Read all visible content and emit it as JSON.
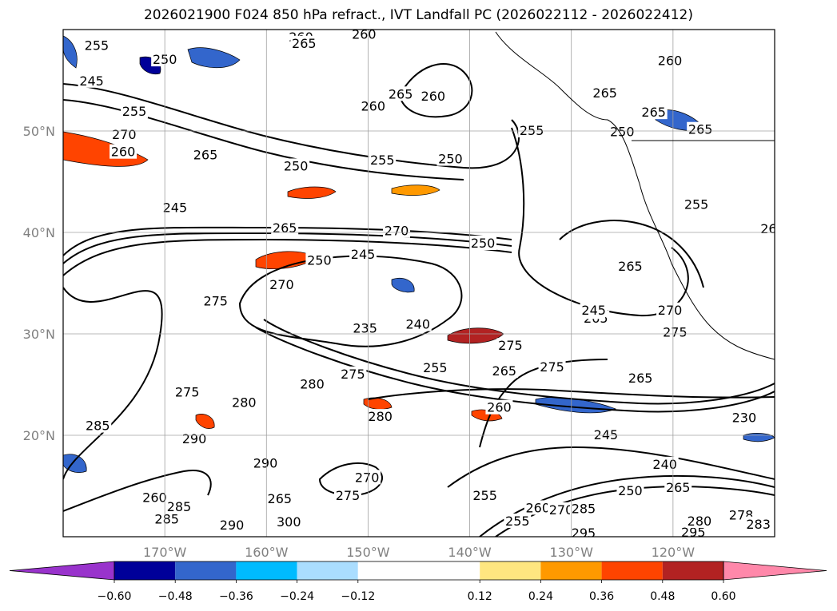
{
  "title": "2026021900 F024 850 hPa refract., IVT Landfall PC (2026022112 - 2026022412)",
  "chart_data": {
    "type": "contour_map",
    "title": "2026021900 F024 850 hPa refract., IVT Landfall PC (2026022112 - 2026022412)",
    "lon_range": [
      -180,
      -110
    ],
    "lat_range": [
      10,
      60
    ],
    "lon_ticks": [
      {
        "value": -170,
        "label": "170°W"
      },
      {
        "value": -160,
        "label": "160°W"
      },
      {
        "value": -150,
        "label": "150°W"
      },
      {
        "value": -140,
        "label": "140°W"
      },
      {
        "value": -130,
        "label": "130°W"
      },
      {
        "value": -120,
        "label": "120°W"
      }
    ],
    "lat_ticks": [
      {
        "value": 50,
        "label": "50°N"
      },
      {
        "value": 40,
        "label": "40°N"
      },
      {
        "value": 30,
        "label": "30°N"
      },
      {
        "value": 20,
        "label": "20°N"
      }
    ],
    "grid": true,
    "tick_color": "#808080",
    "colorbar": {
      "orientation": "horizontal",
      "extend": "both",
      "levels": [
        -0.72,
        -0.6,
        -0.48,
        -0.36,
        -0.24,
        -0.12,
        0.12,
        0.24,
        0.36,
        0.48,
        0.6,
        0.72
      ],
      "tick_labels": [
        "−0.60",
        "−0.48",
        "−0.36",
        "−0.24",
        "−0.12",
        "0.12",
        "0.24",
        "0.36",
        "0.48",
        "0.60"
      ],
      "colors": [
        "#9933cc",
        "#000099",
        "#3366cc",
        "#00bbff",
        "#aaddff",
        "#ffffff",
        "#ffe680",
        "#ff9900",
        "#ff4400",
        "#b22222",
        "#ff88aa"
      ]
    },
    "contour_labels": [
      {
        "text": "255",
        "lon": -176.7,
        "lat": 58.4
      },
      {
        "text": "250",
        "lon": -170.0,
        "lat": 57.0
      },
      {
        "text": "245",
        "lon": -177.2,
        "lat": 54.9
      },
      {
        "text": "255",
        "lon": -173.0,
        "lat": 51.9
      },
      {
        "text": "270",
        "lon": -174.0,
        "lat": 49.6
      },
      {
        "text": "260",
        "lon": -174.1,
        "lat": 47.9
      },
      {
        "text": "265",
        "lon": -166.0,
        "lat": 47.6
      },
      {
        "text": "245",
        "lon": -169.0,
        "lat": 42.4
      },
      {
        "text": "265",
        "lon": -158.2,
        "lat": 40.4
      },
      {
        "text": "250",
        "lon": -157.1,
        "lat": 46.5
      },
      {
        "text": "255",
        "lon": -148.6,
        "lat": 47.1
      },
      {
        "text": "250",
        "lon": -141.9,
        "lat": 47.2
      },
      {
        "text": "260",
        "lon": -156.6,
        "lat": 59.2
      },
      {
        "text": "265",
        "lon": -156.3,
        "lat": 58.6
      },
      {
        "text": "260",
        "lon": -150.4,
        "lat": 59.5
      },
      {
        "text": "265",
        "lon": -146.8,
        "lat": 53.6
      },
      {
        "text": "260",
        "lon": -143.6,
        "lat": 53.4
      },
      {
        "text": "260",
        "lon": -149.5,
        "lat": 52.4
      },
      {
        "text": "270",
        "lon": -147.2,
        "lat": 40.1
      },
      {
        "text": "250",
        "lon": -154.8,
        "lat": 37.2
      },
      {
        "text": "245",
        "lon": -150.5,
        "lat": 37.8
      },
      {
        "text": "275",
        "lon": -165.0,
        "lat": 33.2
      },
      {
        "text": "270",
        "lon": -158.5,
        "lat": 34.8
      },
      {
        "text": "235",
        "lon": -150.3,
        "lat": 30.5
      },
      {
        "text": "240",
        "lon": -145.1,
        "lat": 30.9
      },
      {
        "text": "275",
        "lon": -136.0,
        "lat": 28.8
      },
      {
        "text": "275",
        "lon": -131.9,
        "lat": 26.7
      },
      {
        "text": "265",
        "lon": -136.6,
        "lat": 26.3
      },
      {
        "text": "255",
        "lon": -143.4,
        "lat": 26.6
      },
      {
        "text": "280",
        "lon": -155.5,
        "lat": 25.0
      },
      {
        "text": "275",
        "lon": -151.5,
        "lat": 26.0
      },
      {
        "text": "280",
        "lon": -148.8,
        "lat": 21.8
      },
      {
        "text": "260",
        "lon": -137.1,
        "lat": 22.7
      },
      {
        "text": "265",
        "lon": -127.6,
        "lat": 31.5
      },
      {
        "text": "265",
        "lon": -123.2,
        "lat": 25.6
      },
      {
        "text": "240",
        "lon": -128.0,
        "lat": 32.1
      },
      {
        "text": "245",
        "lon": -127.8,
        "lat": 32.3
      },
      {
        "text": "250",
        "lon": -138.7,
        "lat": 38.9
      },
      {
        "text": "255",
        "lon": -133.9,
        "lat": 50.0
      },
      {
        "text": "260",
        "lon": -120.3,
        "lat": 56.9
      },
      {
        "text": "265",
        "lon": -121.9,
        "lat": 51.8
      },
      {
        "text": "265",
        "lon": -117.3,
        "lat": 50.1
      },
      {
        "text": "250",
        "lon": -125.0,
        "lat": 49.9
      },
      {
        "text": "265",
        "lon": -126.7,
        "lat": 53.7
      },
      {
        "text": "255",
        "lon": -117.7,
        "lat": 42.7
      },
      {
        "text": "265",
        "lon": -124.2,
        "lat": 36.6
      },
      {
        "text": "270",
        "lon": -120.3,
        "lat": 32.3
      },
      {
        "text": "275",
        "lon": -119.8,
        "lat": 30.1
      },
      {
        "text": "240",
        "lon": -120.8,
        "lat": 17.1
      },
      {
        "text": "250",
        "lon": -124.2,
        "lat": 14.5
      },
      {
        "text": "245",
        "lon": -126.6,
        "lat": 20.0
      },
      {
        "text": "230",
        "lon": -113.0,
        "lat": 21.7
      },
      {
        "text": "285",
        "lon": -176.6,
        "lat": 20.9
      },
      {
        "text": "275",
        "lon": -167.8,
        "lat": 24.2
      },
      {
        "text": "280",
        "lon": -162.2,
        "lat": 23.2
      },
      {
        "text": "290",
        "lon": -167.1,
        "lat": 19.6
      },
      {
        "text": "290",
        "lon": -160.1,
        "lat": 17.2
      },
      {
        "text": "265",
        "lon": -158.7,
        "lat": 13.7
      },
      {
        "text": "300",
        "lon": -157.8,
        "lat": 11.4
      },
      {
        "text": "290",
        "lon": -163.4,
        "lat": 11.1
      },
      {
        "text": "285",
        "lon": -168.6,
        "lat": 12.9
      },
      {
        "text": "260",
        "lon": -171.0,
        "lat": 13.8
      },
      {
        "text": "285",
        "lon": -169.8,
        "lat": 11.7
      },
      {
        "text": "270",
        "lon": -150.1,
        "lat": 15.8
      },
      {
        "text": "275",
        "lon": -152.0,
        "lat": 14.0
      },
      {
        "text": "255",
        "lon": -138.5,
        "lat": 14.0
      },
      {
        "text": "255",
        "lon": -135.3,
        "lat": 11.5
      },
      {
        "text": "260",
        "lon": -133.3,
        "lat": 12.8
      },
      {
        "text": "270",
        "lon": -131.0,
        "lat": 12.6
      },
      {
        "text": "285",
        "lon": -128.8,
        "lat": 12.7
      },
      {
        "text": "295",
        "lon": -118.0,
        "lat": 10.4
      },
      {
        "text": "280",
        "lon": -117.4,
        "lat": 11.5
      },
      {
        "text": "295",
        "lon": -128.8,
        "lat": 10.3
      },
      {
        "text": "265",
        "lon": -119.5,
        "lat": 14.8
      },
      {
        "text": "278",
        "lon": -113.3,
        "lat": 12.1
      },
      {
        "text": "283",
        "lon": -111.6,
        "lat": 11.2
      },
      {
        "text": "26",
        "lon": -110.6,
        "lat": 40.3
      }
    ]
  }
}
